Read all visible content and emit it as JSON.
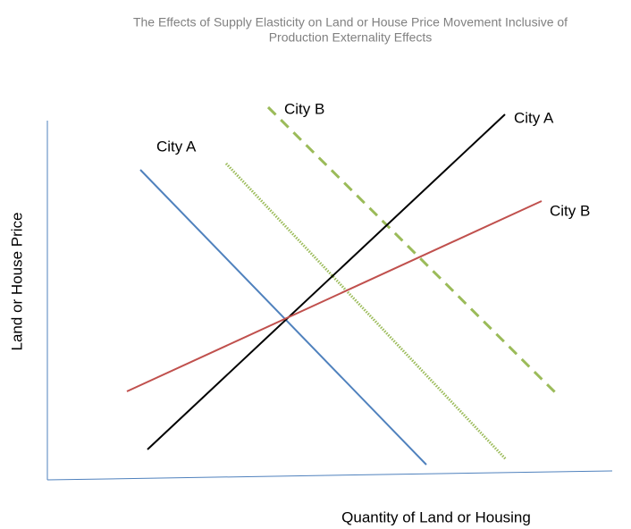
{
  "title": {
    "lines": [
      "The Effects of Supply Elasticity on Land or House Price Movement Inclusive of",
      "Production Externality Effects"
    ]
  },
  "axes": {
    "y_label": "Land or House Price",
    "x_label": "Quantity of Land or Housing"
  },
  "curves": [
    {
      "label": "City A"
    },
    {
      "label": "City B"
    },
    {
      "label": "City A"
    },
    {
      "label": "City B"
    }
  ]
}
